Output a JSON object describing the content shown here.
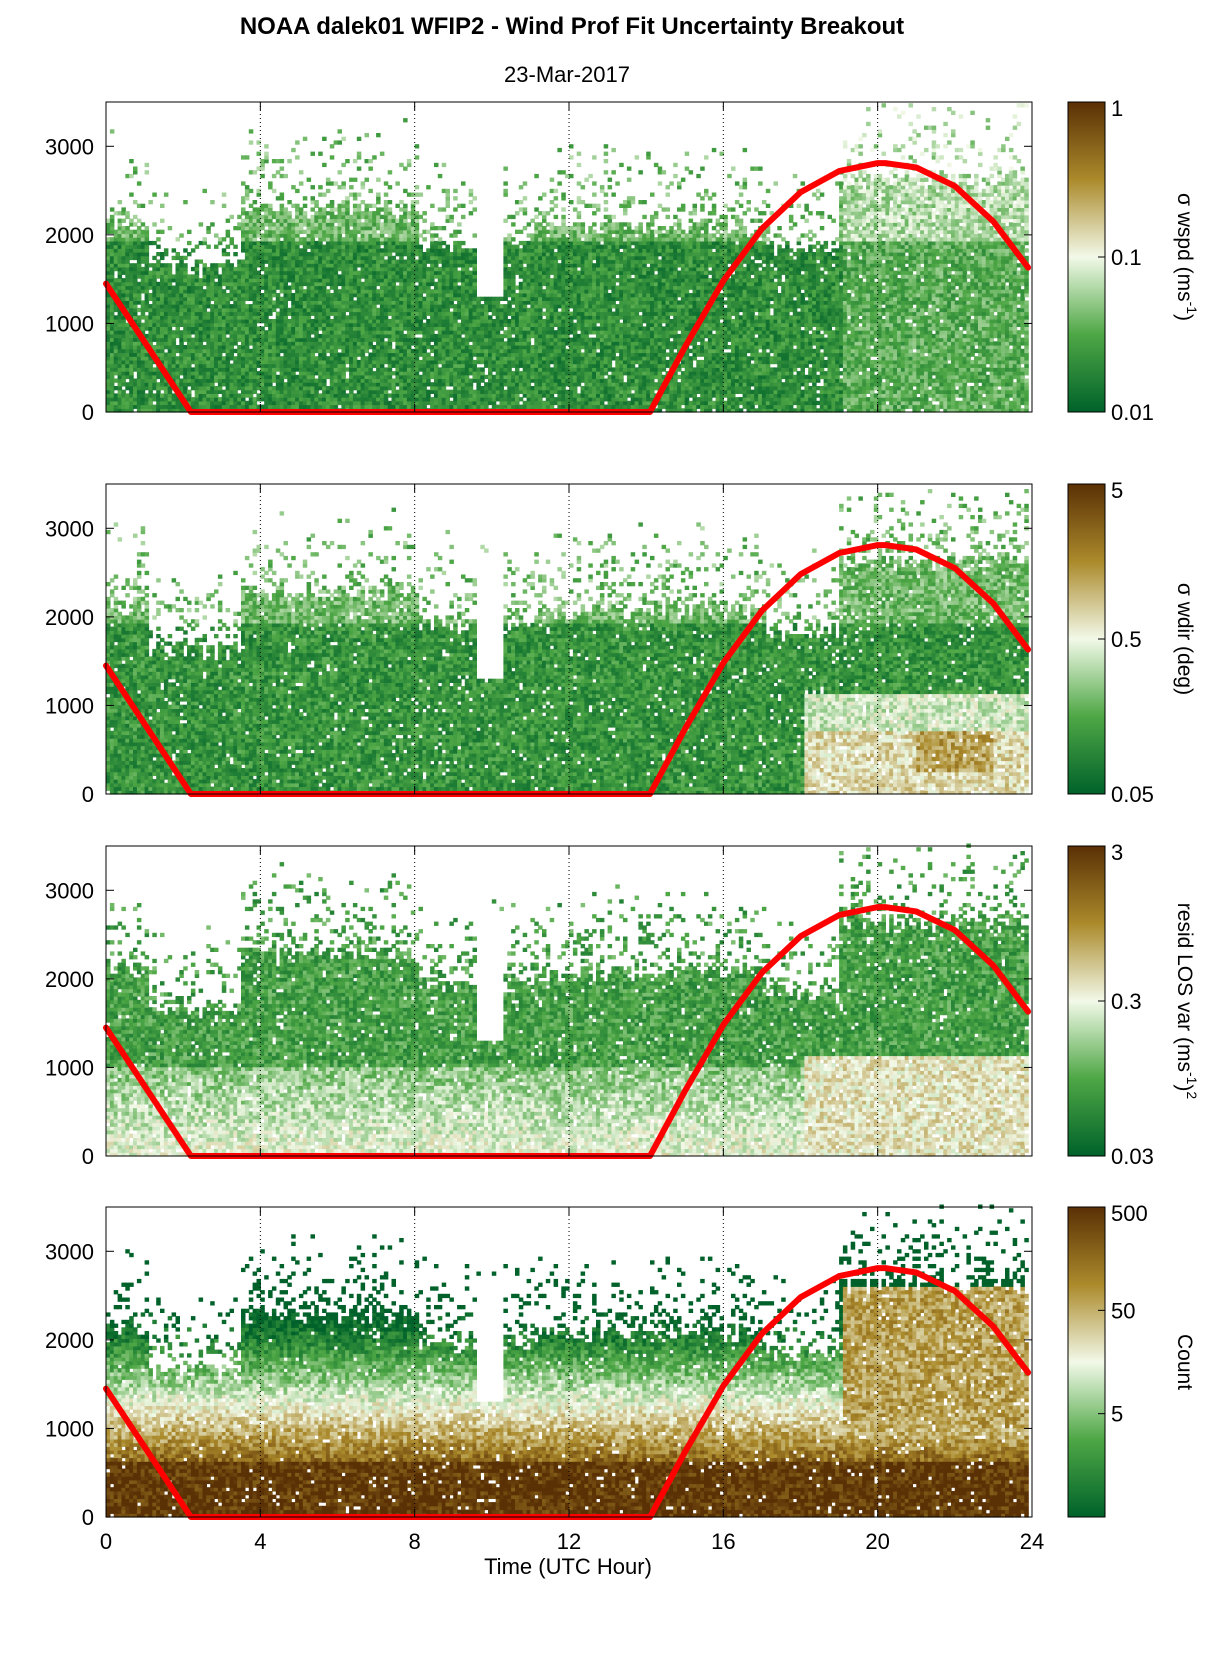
{
  "title": "NOAA dalek01 WFIP2 - Wind Prof Fit Uncertainty Breakout",
  "subtitle": "23-Mar-2017",
  "xlabel": "Time (UTC Hour)",
  "colors": {
    "low": "#00622a",
    "mid": "#f2f9e8",
    "high": "#5a3005",
    "sun_curve": "#ff0000"
  },
  "chart_data": [
    {
      "type": "heatmap",
      "name": "sigma_wspd",
      "xlim": [
        0,
        24
      ],
      "ylim": [
        0,
        3500
      ],
      "xticks": [
        0,
        4,
        8,
        12,
        16,
        20,
        24
      ],
      "yticks": [
        0,
        1000,
        2000,
        3000
      ],
      "xgrid_dotted": [
        4,
        8,
        12,
        16,
        20
      ],
      "colorbar": {
        "scale": "log",
        "range": [
          0.01,
          1
        ],
        "ticks": [
          "0.01",
          "0.1",
          "1"
        ],
        "label": "σ wspd (ms",
        "label_sup": "-1",
        "label_tail": ")"
      }
    },
    {
      "type": "heatmap",
      "name": "sigma_wdir",
      "xlim": [
        0,
        24
      ],
      "ylim": [
        0,
        3500
      ],
      "xticks": [
        0,
        4,
        8,
        12,
        16,
        20,
        24
      ],
      "yticks": [
        0,
        1000,
        2000,
        3000
      ],
      "xgrid_dotted": [
        4,
        8,
        12,
        16,
        20
      ],
      "colorbar": {
        "scale": "log",
        "range": [
          0.05,
          5
        ],
        "ticks": [
          "0.05",
          "0.5",
          "5"
        ],
        "label": "σ wdir (deg)",
        "label_sup": "",
        "label_tail": ""
      }
    },
    {
      "type": "heatmap",
      "name": "resid_los_var",
      "xlim": [
        0,
        24
      ],
      "ylim": [
        0,
        3500
      ],
      "xticks": [
        0,
        4,
        8,
        12,
        16,
        20,
        24
      ],
      "yticks": [
        0,
        1000,
        2000,
        3000
      ],
      "xgrid_dotted": [
        4,
        8,
        12,
        16,
        20
      ],
      "colorbar": {
        "scale": "log",
        "range": [
          0.03,
          3
        ],
        "ticks": [
          "0.03",
          "0.3",
          "3"
        ],
        "label": "resid LOS var (ms",
        "label_sup": "-1",
        "label_tail": ")",
        "label_sup2": "2"
      }
    },
    {
      "type": "heatmap",
      "name": "count",
      "xlim": [
        0,
        24
      ],
      "ylim": [
        0,
        3500
      ],
      "xticks": [
        0,
        4,
        8,
        12,
        16,
        20,
        24
      ],
      "yticks": [
        0,
        1000,
        2000,
        3000
      ],
      "xgrid_dotted": [
        4,
        8,
        12,
        16,
        20
      ],
      "show_xticklabels": true,
      "colorbar": {
        "scale": "log",
        "range": [
          0.5,
          500
        ],
        "ticks": [
          "5",
          "50",
          "500"
        ],
        "label": "Count",
        "label_sup": "",
        "label_tail": ""
      }
    }
  ],
  "sun_curve": {
    "x": [
      0,
      2.2,
      14.1,
      15,
      16,
      17,
      18,
      19,
      20,
      20.2,
      21,
      22,
      23,
      23.9
    ],
    "y": [
      1450,
      0,
      0,
      730,
      1480,
      2070,
      2480,
      2720,
      2810,
      2810,
      2760,
      2550,
      2150,
      1630
    ]
  }
}
